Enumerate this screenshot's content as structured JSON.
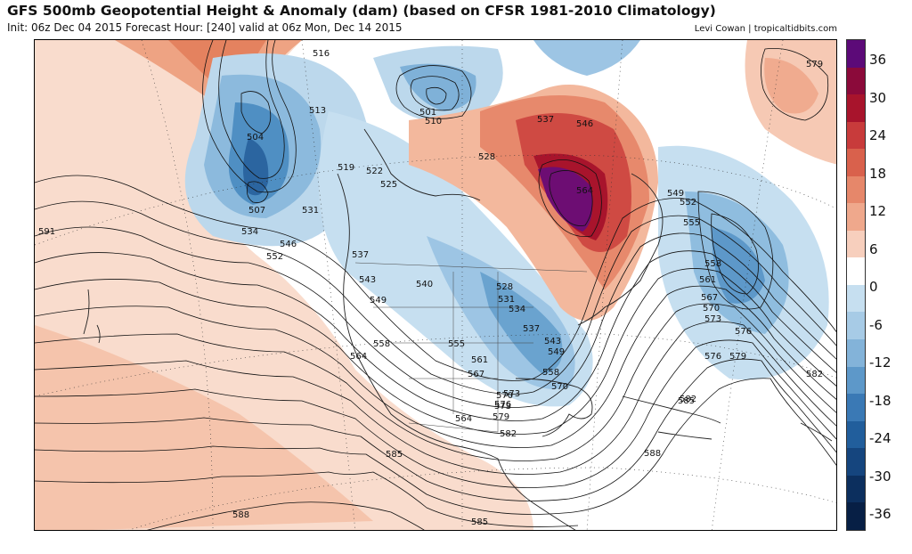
{
  "header": {
    "title": "GFS 500mb Geopotential Height & Anomaly (dam) (based on CFSR 1981-2010 Climatology)",
    "subtitle": "Init: 06z Dec 04 2015   Forecast Hour: [240]   valid at 06z Mon, Dec 14 2015",
    "credit": "Levi Cowan | tropicaltidbits.com"
  },
  "colorbar": {
    "ticks": [
      "36",
      "30",
      "24",
      "18",
      "12",
      "6",
      "0",
      "-6",
      "-12",
      "-18",
      "-24",
      "-30",
      "-36"
    ],
    "colors": [
      "#5c0a78",
      "#8b0a3a",
      "#a8142c",
      "#c83b3b",
      "#d9614c",
      "#e6876a",
      "#efa88c",
      "#f7cfbd",
      "#ffffff",
      "#c6dff0",
      "#a7cbe6",
      "#83b3d9",
      "#5d98c9",
      "#3a79b5",
      "#215e9c",
      "#15457e",
      "#0c2f5e",
      "#071f45"
    ]
  },
  "map": {
    "height_labels": [
      "516",
      "513",
      "504",
      "507",
      "519",
      "522",
      "525",
      "528",
      "531",
      "534",
      "537",
      "543",
      "546",
      "549",
      "552",
      "540",
      "555",
      "558",
      "561",
      "564",
      "567",
      "570",
      "573",
      "576",
      "579",
      "582",
      "585",
      "588",
      "591",
      "501",
      "510",
      "546",
      "537",
      "564",
      "549",
      "552",
      "555",
      "558",
      "561",
      "567",
      "570",
      "573",
      "576",
      "579",
      "582",
      "585",
      "588",
      "531",
      "534",
      "528",
      "537",
      "543",
      "549",
      "558",
      "564",
      "570",
      "573",
      "576",
      "579",
      "582",
      "585",
      "588"
    ]
  }
}
